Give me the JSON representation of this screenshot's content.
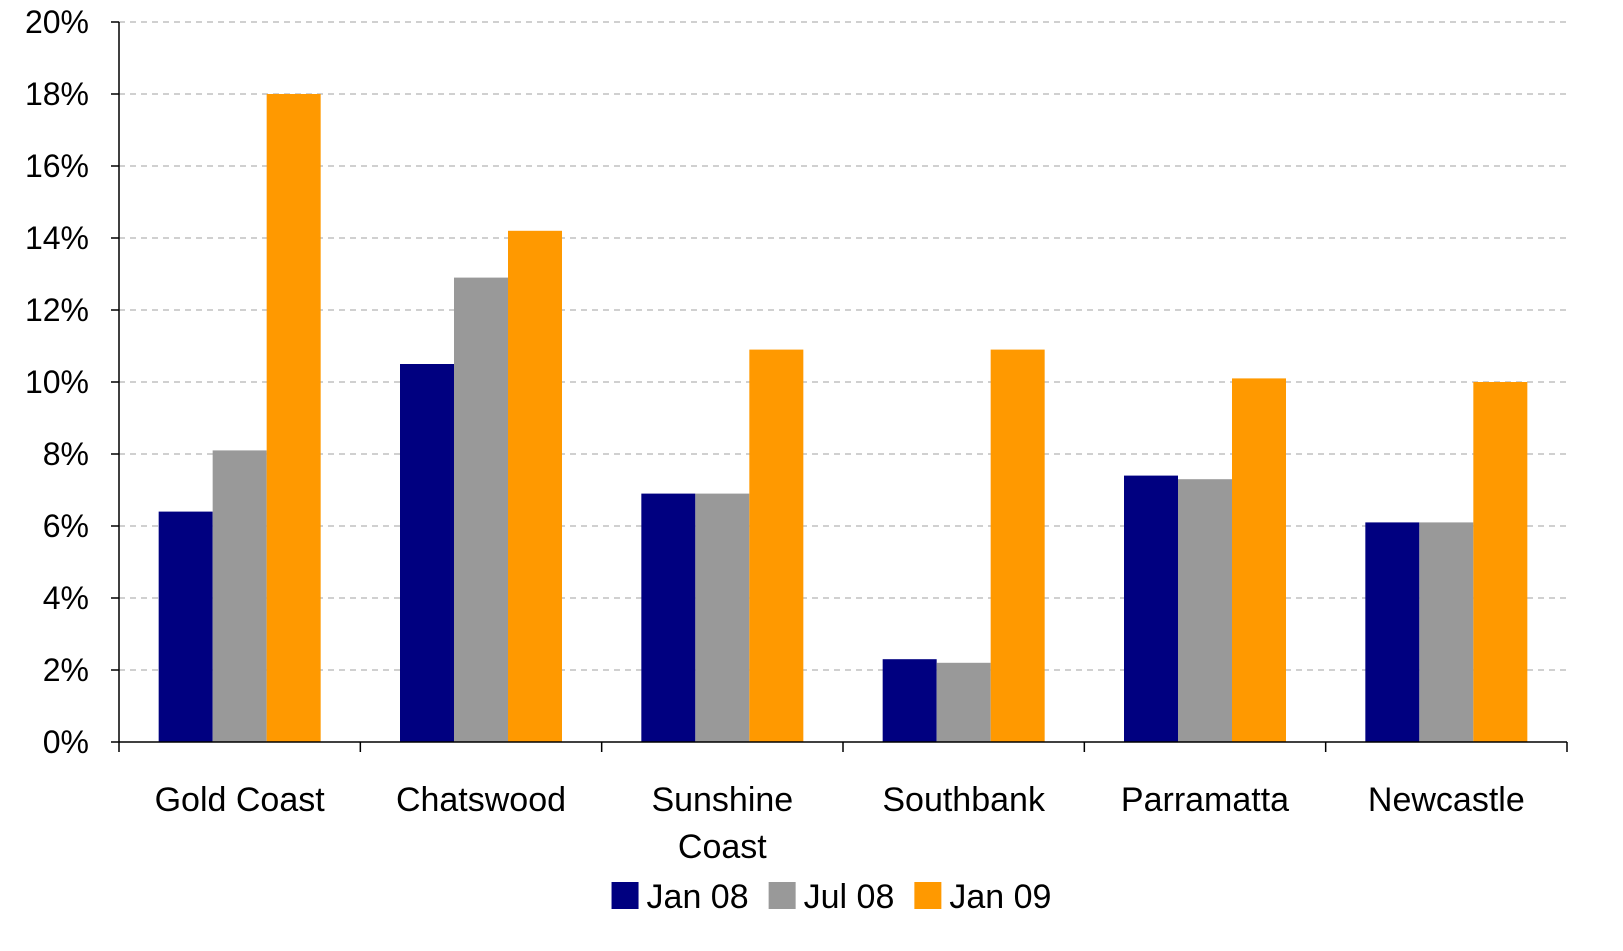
{
  "chart_data": {
    "type": "bar",
    "categories": [
      [
        "Gold Coast"
      ],
      [
        "Chatswood"
      ],
      [
        "Sunshine",
        "Coast"
      ],
      [
        "Southbank"
      ],
      [
        "Parramatta"
      ],
      [
        "Newcastle"
      ]
    ],
    "series": [
      {
        "name": "Jan 08",
        "color": "#000080",
        "values": [
          6.4,
          10.5,
          6.9,
          2.3,
          7.4,
          6.1
        ]
      },
      {
        "name": "Jul 08",
        "color": "#999999",
        "values": [
          8.1,
          12.9,
          6.9,
          2.2,
          7.3,
          6.1
        ]
      },
      {
        "name": "Jan 09",
        "color": "#FF9900",
        "values": [
          18.0,
          14.2,
          10.9,
          10.9,
          10.1,
          10.0
        ]
      }
    ],
    "ylim": [
      0,
      20
    ],
    "yticks": [
      0,
      2,
      4,
      6,
      8,
      10,
      12,
      14,
      16,
      18,
      20
    ],
    "ytick_format": "{v}%",
    "grid": "horizontal-dashed",
    "legend": "bottom-center",
    "title": "",
    "xlabel": "",
    "ylabel": ""
  }
}
